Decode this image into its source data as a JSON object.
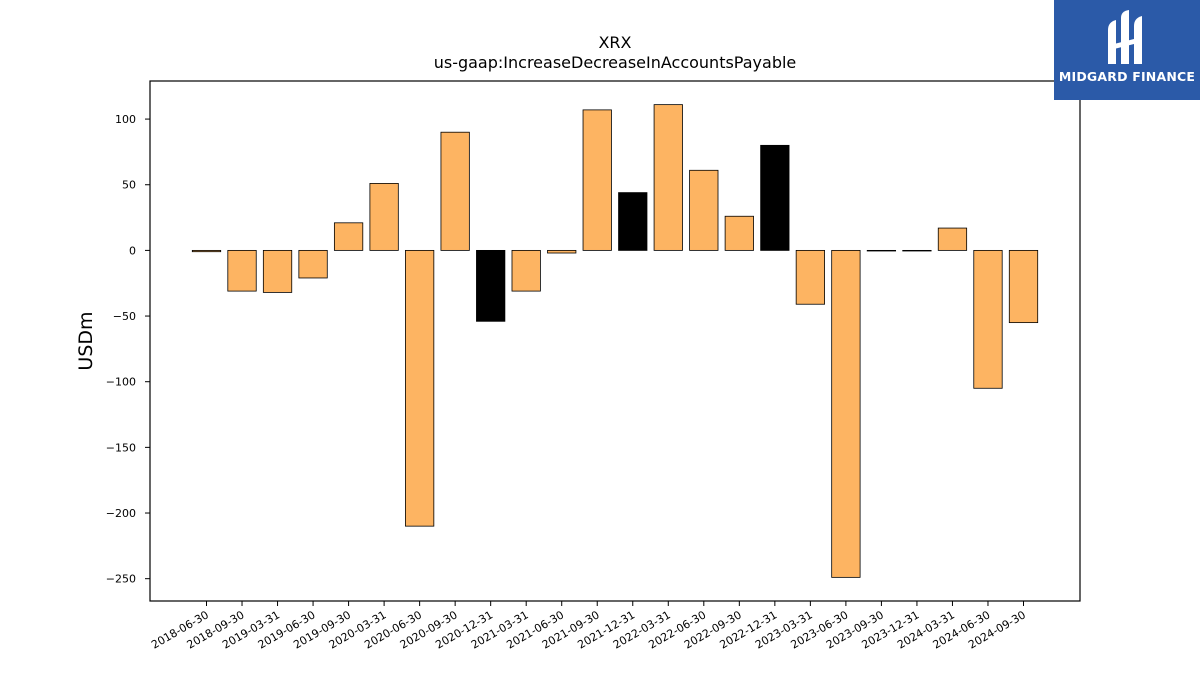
{
  "logo": {
    "text": "MIDGARD FINANCE",
    "icon": "midgard-logo-icon",
    "background": "#2b5aa8"
  },
  "chart_data": {
    "type": "bar",
    "title": "XRX",
    "subtitle": "us-gaap:IncreaseDecreaseInAccountsPayable",
    "xlabel": "",
    "ylabel": "USDm",
    "ylim": [
      -267,
      129
    ],
    "yticks": [
      100,
      50,
      0,
      -50,
      -100,
      -150,
      -200,
      -250
    ],
    "ytick_labels": [
      "100",
      "50",
      "0",
      "−50",
      "−100",
      "−150",
      "−200",
      "−250"
    ],
    "grid": false,
    "colors": {
      "quarter": "#fdb462",
      "year_end": "#000000",
      "edge": "#000000"
    },
    "categories": [
      "2018-06-30",
      "2018-09-30",
      "2019-03-31",
      "2019-06-30",
      "2019-09-30",
      "2020-03-31",
      "2020-06-30",
      "2020-09-30",
      "2020-12-31",
      "2021-03-31",
      "2021-06-30",
      "2021-09-30",
      "2021-12-31",
      "2022-03-31",
      "2022-06-30",
      "2022-09-30",
      "2022-12-31",
      "2023-03-31",
      "2023-06-30",
      "2023-09-30",
      "2023-12-31",
      "2024-03-31",
      "2024-06-30",
      "2024-09-30"
    ],
    "values": [
      -1,
      -31,
      -32,
      -21,
      21,
      51,
      -210,
      90,
      -54,
      -31,
      -2,
      107,
      44,
      111,
      61,
      26,
      80,
      -41,
      -249,
      0,
      0,
      17,
      -105,
      -55
    ],
    "highlight": [
      false,
      false,
      false,
      false,
      false,
      false,
      false,
      false,
      true,
      false,
      false,
      false,
      true,
      false,
      false,
      false,
      true,
      false,
      false,
      false,
      false,
      false,
      false,
      false
    ]
  }
}
